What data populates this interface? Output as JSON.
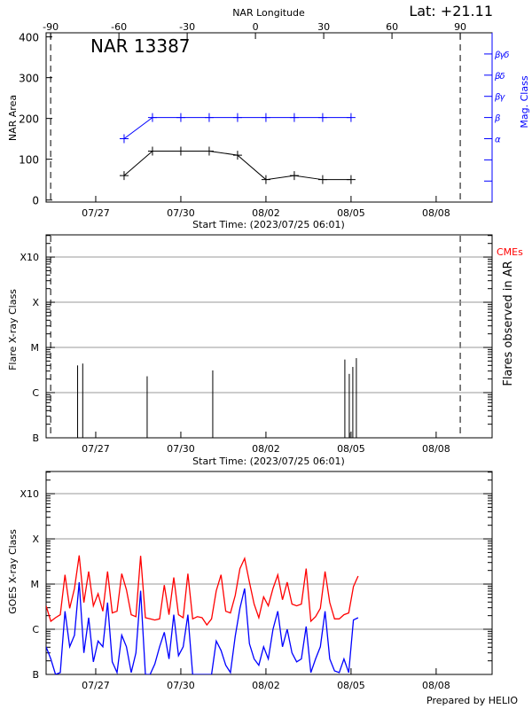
{
  "header": {
    "lat_label": "Lat: +21.11"
  },
  "footer": {
    "credit": "Prepared by HELIO"
  },
  "colors": {
    "area": "#000000",
    "mag_class": "#0000ff",
    "goes_long": "#ff0000",
    "goes_short": "#0000ff",
    "cme_label": "#ff0000",
    "grid": "#999999"
  },
  "chart_data": [
    {
      "type": "line",
      "title": "NAR 13387",
      "ylabel": "NAR Area",
      "y2label": "Mag. Class",
      "top_xlabel": "NAR Longitude",
      "xlabel": "Start Time: (2023/07/25 06:01)",
      "xlim": [
        "2023/07/25 06:01",
        "2023/08/09 23:20"
      ],
      "ylim": [
        -5,
        410
      ],
      "yticks": [
        "0",
        "100",
        "200",
        "300",
        "400"
      ],
      "xticks": [
        "07/27",
        "07/30",
        "08/02",
        "08/05",
        "08/08"
      ],
      "top_xticks": [
        "-90",
        "-60",
        "-30",
        "0",
        "30",
        "60",
        "90"
      ],
      "top_xlim": [
        -92,
        104
      ],
      "mag_classes": [
        "",
        "",
        "α",
        "β",
        "βγ",
        "βδ",
        "βγδ"
      ],
      "limb_longitudes": [
        -90,
        90
      ],
      "x": [
        "07/28",
        "07/29",
        "07/30",
        "07/31",
        "08/01",
        "08/02",
        "08/03",
        "08/04",
        "08/05"
      ],
      "area": [
        60,
        120,
        120,
        120,
        110,
        50,
        60,
        50,
        50
      ],
      "mag_class": [
        "α",
        "β",
        "β",
        "β",
        "β",
        "β",
        "β",
        "β",
        "β"
      ],
      "grid": false
    },
    {
      "type": "bar",
      "ylabel": "Flare X-ray Class",
      "y2label": "Flares observed in AR",
      "cme_label": "CMEs",
      "xlabel": "Start Time: (2023/07/25 06:01)",
      "xticks": [
        "07/27",
        "07/30",
        "08/02",
        "08/05",
        "08/08"
      ],
      "yscale": "log",
      "ylim": [
        1e-07,
        0.0031
      ],
      "yticks": [
        "B",
        "C",
        "M",
        "X",
        "X10"
      ],
      "limb_longitudes": [
        -90,
        90
      ],
      "grid": true,
      "flares": [
        {
          "time": "07/26 08:40",
          "class": "C4.0"
        },
        {
          "time": "07/26 13:00",
          "class": "C4.4"
        },
        {
          "time": "07/28 19:30",
          "class": "C2.3"
        },
        {
          "time": "07/31 03:00",
          "class": "C3.1"
        },
        {
          "time": "08/04 18:45",
          "class": "C5.4"
        },
        {
          "time": "08/04 22:30",
          "class": "C2.6"
        },
        {
          "time": "08/04 22:45",
          "class": "B1.3"
        },
        {
          "time": "08/05 01:30",
          "class": "C3.7"
        },
        {
          "time": "08/05 04:30",
          "class": "C5.8"
        }
      ]
    },
    {
      "type": "line",
      "ylabel": "GOES X-ray Class",
      "xticks": [
        "07/27",
        "07/30",
        "08/02",
        "08/05",
        "08/08"
      ],
      "yscale": "log",
      "ylim": [
        1e-07,
        0.0031
      ],
      "yticks": [
        "B",
        "C",
        "M",
        "X",
        "X10"
      ],
      "grid": true,
      "start": "2023/07/25 06:00",
      "cadence_hours": 4,
      "series": [
        {
          "values": [
            3.3e-06,
            1.5e-06,
            1.8e-06,
            2.1e-06,
            1.6e-05,
            2.9e-06,
            8e-06,
            4.3e-05,
            3.9e-06,
            1.9e-05,
            3.3e-06,
            6.1e-06,
            2.5e-06,
            1.9e-05,
            2.3e-06,
            2.5e-06,
            1.7e-05,
            7.5e-06,
            2.1e-06,
            1.9e-06,
            4.2e-05,
            1.8e-06,
            1.7e-06,
            1.6e-06,
            1.7e-06,
            9.5e-06,
            2.1e-06,
            1.4e-05,
            2.1e-06,
            1.8e-06,
            1.7e-05,
            1.7e-06,
            1.9e-06,
            1.8e-06,
            1.25e-06,
            1.7e-06,
            7.1e-06,
            1.6e-05,
            2.5e-06,
            2.3e-06,
            5.6e-06,
            2.2e-05,
            3.7e-05,
            1.1e-05,
            3.6e-06,
            1.8e-06,
            5.2e-06,
            3.3e-06,
            8e-06,
            1.6e-05,
            4.5e-06,
            1.1e-05,
            3.6e-06,
            3.3e-06,
            3.6e-06,
            2.2e-05,
            1.5e-06,
            1.9e-06,
            2.9e-06,
            1.9e-05,
            3.9e-06,
            1.7e-06,
            1.7e-06,
            2.1e-06,
            2.3e-06,
            8.8e-06,
            1.5e-05
          ]
        },
        {
          "values": [
            4.1e-07,
            2.2e-07,
            1e-07,
            1.1e-07,
            2.5e-06,
            4.1e-07,
            7.4e-07,
            1.1e-05,
            3e-07,
            1.8e-06,
            1.9e-07,
            5.5e-07,
            4.1e-07,
            3.9e-06,
            1.9e-07,
            1.1e-07,
            7.4e-07,
            4.1e-07,
            1.1e-07,
            3e-07,
            7.1e-06,
            1e-07,
            1e-07,
            1.7e-07,
            4.1e-07,
            8.6e-07,
            2.2e-07,
            2.1e-06,
            2.6e-07,
            4.1e-07,
            2.1e-06,
            1e-07,
            1e-07,
            1e-07,
            1e-07,
            1e-07,
            5.5e-07,
            3.4e-07,
            1.6e-07,
            1.1e-07,
            7e-07,
            2.9e-06,
            8e-06,
            4.8e-07,
            2.2e-07,
            1.6e-07,
            4.1e-07,
            2.2e-07,
            1e-06,
            2.5e-06,
            4.1e-07,
            1e-06,
            3e-07,
            1.9e-07,
            2.2e-07,
            1.15e-06,
            1.1e-07,
            2.2e-07,
            4.1e-07,
            2.5e-06,
            2.2e-07,
            1.2e-07,
            1.1e-07,
            2.2e-07,
            1.1e-07,
            1.6e-06,
            1.8e-06
          ]
        }
      ]
    }
  ]
}
